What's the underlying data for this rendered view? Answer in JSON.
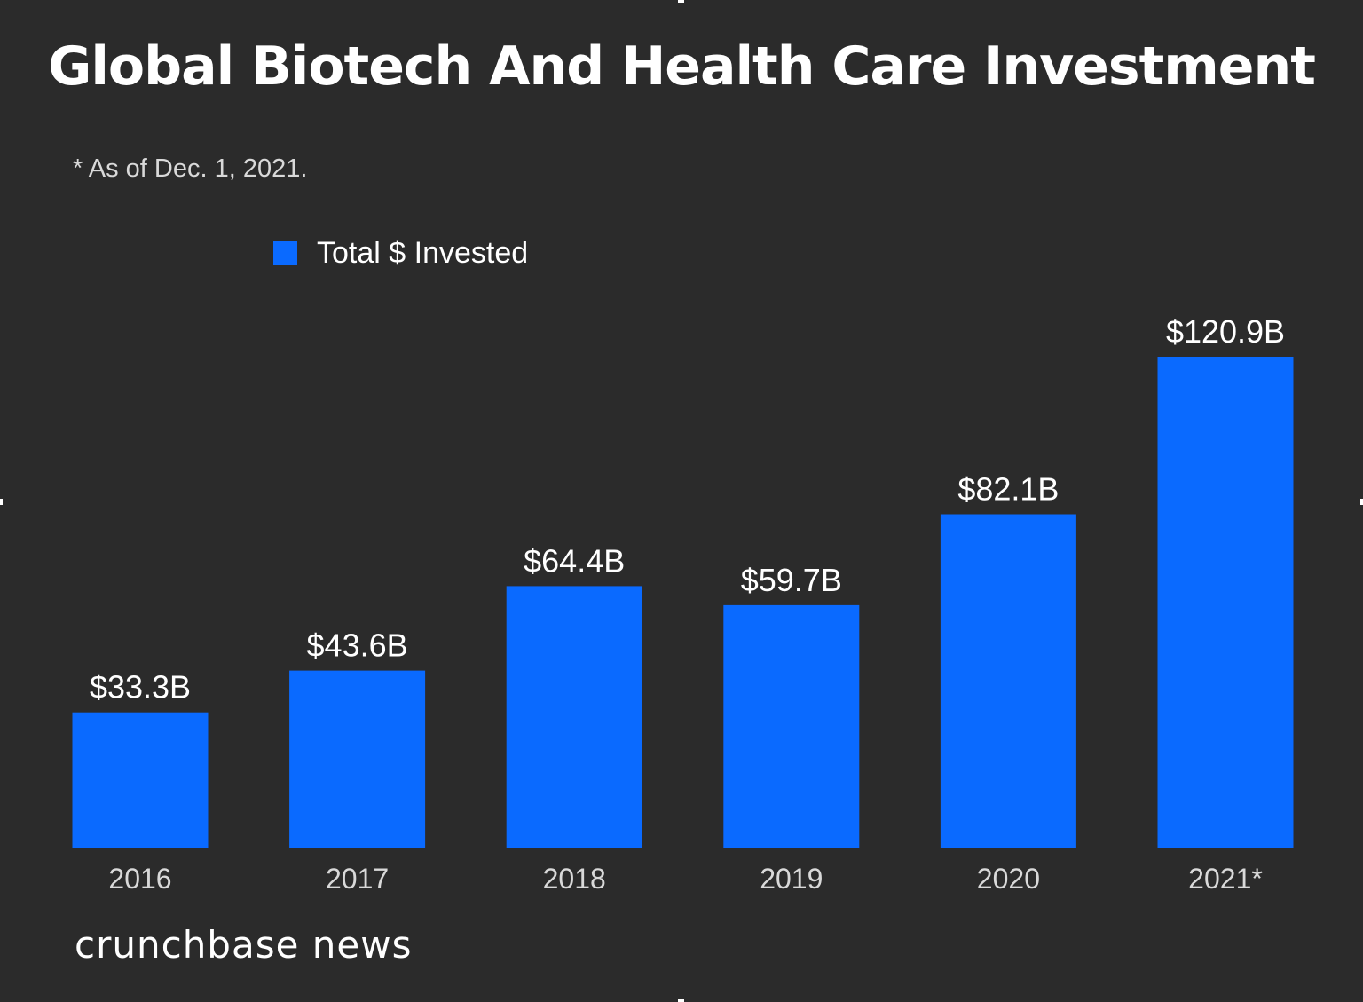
{
  "title": "Global Biotech And Health Care Investment",
  "footnote": "* As of Dec. 1, 2021.",
  "brand": "crunchbase news",
  "colors": {
    "background": "#2b2b2b",
    "bar": "#0a6aff",
    "text": "#ffffff"
  },
  "chart_data": {
    "type": "bar",
    "title": "Global Biotech And Health Care Investment",
    "xlabel": "",
    "ylabel": "",
    "ylim": [
      0,
      120.9
    ],
    "grid": false,
    "legend_position": "top-left",
    "categories": [
      "2016",
      "2017",
      "2018",
      "2019",
      "2020",
      "2021*"
    ],
    "series": [
      {
        "name": "Total $ Invested",
        "values": [
          33.3,
          43.6,
          64.4,
          59.7,
          82.1,
          120.9
        ],
        "labels": [
          "$33.3B",
          "$43.6B",
          "$64.4B",
          "$59.7B",
          "$82.1B",
          "$120.9B"
        ]
      }
    ]
  }
}
